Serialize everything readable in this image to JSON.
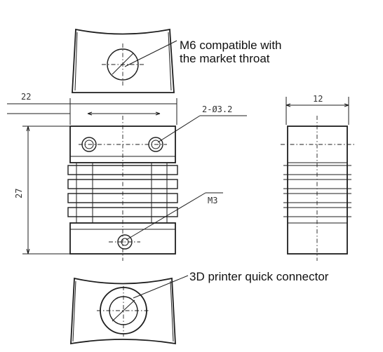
{
  "annotations": {
    "m6_line1": "M6 compatible with",
    "m6_line2": "the market throat",
    "holes": "2-Ø3.2",
    "m3": "M3",
    "connector": "3D printer quick connector"
  },
  "dimensions": {
    "width": "22",
    "height": "27",
    "depth": "12"
  }
}
